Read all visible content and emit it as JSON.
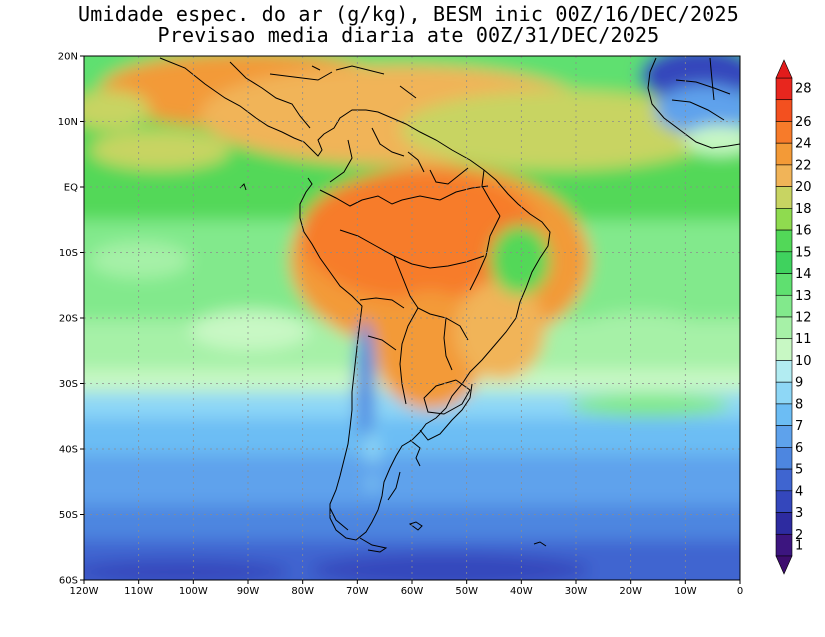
{
  "title": {
    "line1": "Umidade espec. do ar (g/kg), BESM inic 00Z/16/DEC/2025",
    "line2": "Previsao media diaria ate 00Z/31/DEC/2025"
  },
  "map": {
    "lon_range": [
      -120,
      0
    ],
    "lat_range": [
      -60,
      20
    ],
    "lon_ticks": [
      "120W",
      "110W",
      "100W",
      "90W",
      "80W",
      "70W",
      "60W",
      "50W",
      "40W",
      "30W",
      "20W",
      "10W",
      "0"
    ],
    "lat_ticks": [
      "20N",
      "10N",
      "EQ",
      "10S",
      "20S",
      "30S",
      "40S",
      "50S",
      "60S"
    ]
  },
  "colorbar": {
    "labels": [
      "28",
      "26",
      "24",
      "22",
      "20",
      "18",
      "16",
      "15",
      "14",
      "13",
      "12",
      "11",
      "10",
      "9",
      "8",
      "7",
      "6",
      "5",
      "4",
      "3",
      "2",
      "1"
    ],
    "colors": [
      "#e8261e",
      "#f3501f",
      "#f77b2a",
      "#f39a37",
      "#f1b458",
      "#c8d462",
      "#8fdb4f",
      "#52d858",
      "#3fd25e",
      "#5fe070",
      "#82e98c",
      "#a6f1a7",
      "#c8f8c4",
      "#b2ecf2",
      "#8ed7f6",
      "#6cbdf4",
      "#5ea2ec",
      "#4d86e0",
      "#3f65d0",
      "#3447bc",
      "#2d2ba0",
      "#3c157f"
    ]
  }
}
